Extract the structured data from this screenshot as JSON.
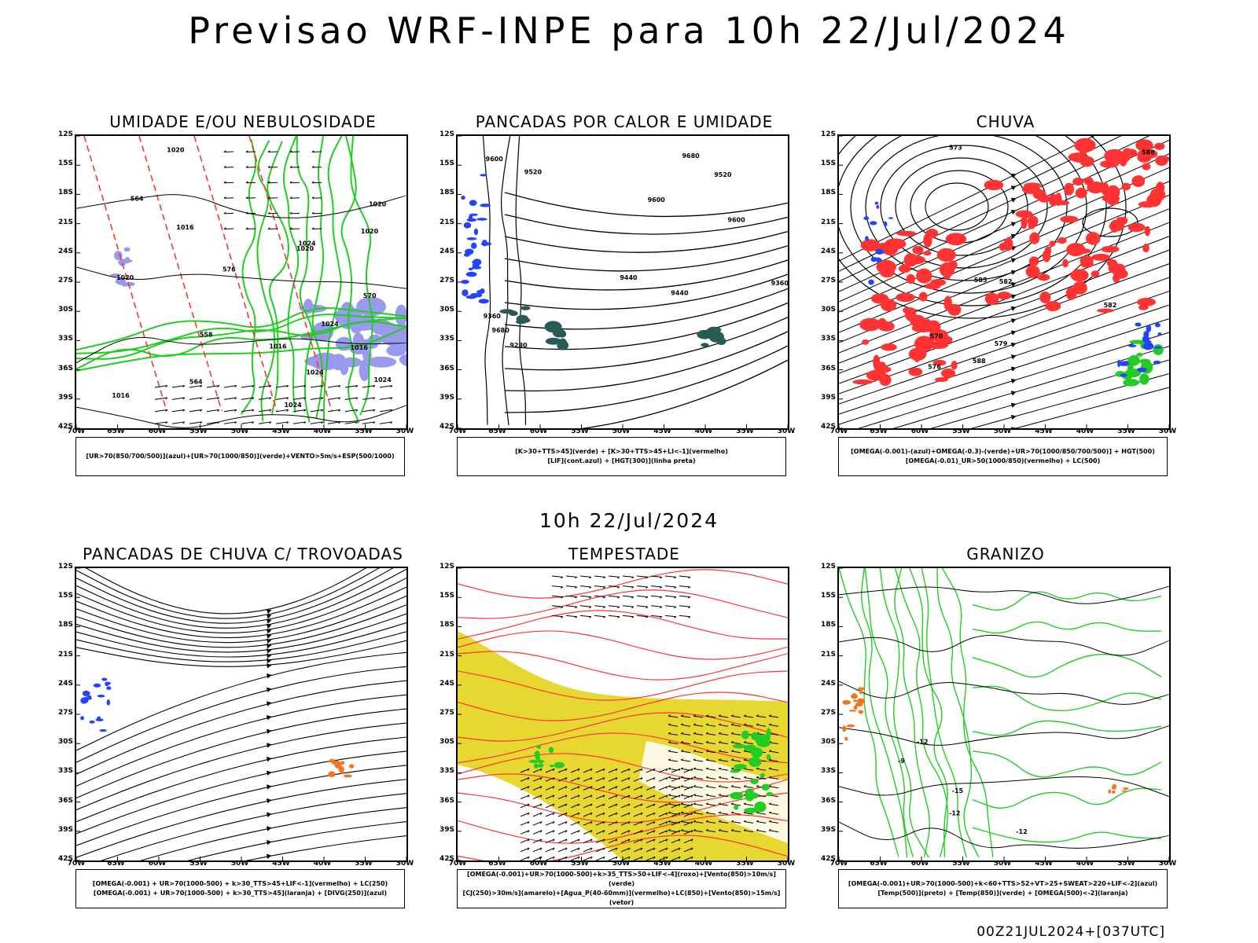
{
  "title": "Previsao WRF-INPE  para 10h 22/Jul/2024",
  "subtitle": "10h 22/Jul/2024",
  "footer": "00Z21JUL2024+[037UTC]",
  "axes": {
    "lat_labels": [
      "12S",
      "15S",
      "18S",
      "21S",
      "24S",
      "27S",
      "30S",
      "33S",
      "36S",
      "39S",
      "42S"
    ],
    "lon_labels": [
      "70W",
      "65W",
      "60W",
      "55W",
      "50W",
      "45W",
      "40W",
      "35W",
      "30W"
    ]
  },
  "colors": {
    "green": "#22cc22",
    "red": "#ff3333",
    "blue": "#2244ff",
    "lavender": "#9999ee",
    "yellow": "#e6d830",
    "orange": "#ee7722",
    "teal": "#2a5a55",
    "black": "#000000"
  },
  "panels": [
    {
      "title": "UMIDADE E/OU NEBULOSIDADE",
      "legend_lines": [
        "[UR>70(850/700/500)](azul)+[UR>70(1000/850)](verde)+VENTO>5m/s+ESP(500/1000)"
      ],
      "contour_labels": [
        "1016",
        "1020",
        "1020",
        "1020",
        "1024",
        "1024",
        "1024",
        "1024",
        "1024",
        "1020",
        "1016",
        "1020",
        "1016",
        "1016",
        "570",
        "564",
        "558",
        "564",
        "576"
      ]
    },
    {
      "title": "PANCADAS POR CALOR E UMIDADE",
      "legend_lines": [
        "[K>30+TTS>45](verde) + [K>30+TTS>45+LI<-1](vermelho)",
        "[LIF](cont.azul) + [HGT(300)](linha preta)"
      ],
      "contour_labels": [
        "9680",
        "9680",
        "9600",
        "9520",
        "9440",
        "9360",
        "9280",
        "9360",
        "9600",
        "9520",
        "9600",
        "9440"
      ]
    },
    {
      "title": "CHUVA",
      "legend_lines": [
        "[OMEGA(-0.001)-(azul)+OMEGA(-0.3)-(verde)+UR>70(1000/850/700/500)] + HGT(500)",
        "[OMEGA(-0.01)_UR>50(1000/850)(vermelho) + LC(500)"
      ],
      "contour_labels": [
        "588",
        "585",
        "582",
        "579",
        "576",
        "573",
        "570",
        "582",
        "588"
      ]
    },
    {
      "title": "PANCADAS DE CHUVA C/ TROVOADAS",
      "legend_lines": [
        "[OMEGA(-0.001) + UR>70(1000-500) + k>30_TTS>45+LIF<-1](vermelho) + LC(250)",
        "[OMEGA(-0.001) + UR>70(1000-500) + k>30_TTS>45](laranja) + [DIVG(250)](azul)"
      ],
      "contour_labels": []
    },
    {
      "title": "TEMPESTADE",
      "legend_lines": [
        "[OMEGA(-0.001)+UR>70(1000-500)+k>35_TTS>50+LIF<-4](roxo)+[Vento(850)>10m/s](verde)",
        "[CJ(250)>30m/s](amarelo)+[Agua_P(40-60mm)](vermelho)+LC(850)+[Vento(850)>15m/s](vetor)"
      ],
      "contour_labels": []
    },
    {
      "title": "GRANIZO",
      "legend_lines": [
        "[OMEGA(-0.001)+UR>70(1000-500)+k<60+TTS>52+VT>25+SWEAT>220+LIF<-2](azul)",
        "[Temp(500)](preto) + [Temp(850)](verde) + [OMEGA(500)<-2](laranja)"
      ],
      "contour_labels": [
        "-12",
        "-15",
        "-12",
        "-12",
        "-9"
      ]
    }
  ]
}
